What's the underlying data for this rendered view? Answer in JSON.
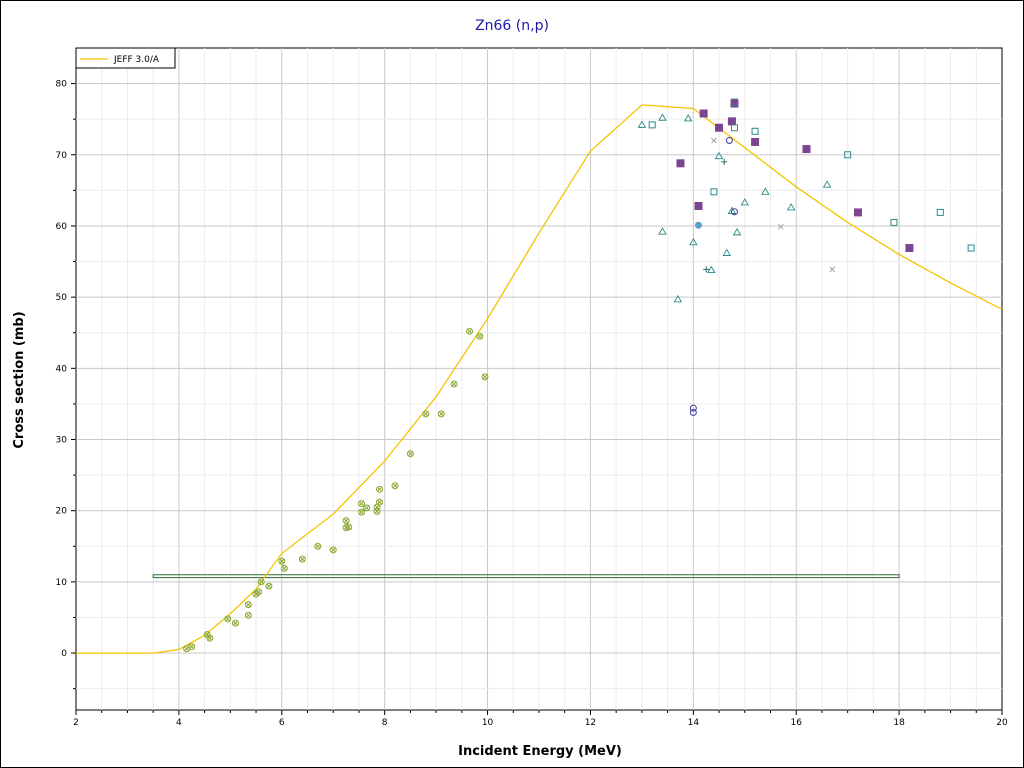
{
  "chart_data": {
    "type": "scatter",
    "title": "Zn66 (n,p)",
    "xlabel": "Incident Energy (MeV)",
    "ylabel": "Cross section (mb)",
    "xlim": [
      2,
      20
    ],
    "ylim": [
      -8,
      85
    ],
    "x_ticks": [
      2,
      4,
      6,
      8,
      10,
      12,
      14,
      16,
      18,
      20
    ],
    "y_ticks": [
      0,
      10,
      20,
      30,
      40,
      50,
      60,
      70,
      80
    ],
    "grid": true,
    "legend_placement": "top-left",
    "legend": [
      {
        "label": "JEFF 3.0/A",
        "color": "#f5c400"
      }
    ],
    "evaluated_curve": {
      "name": "JEFF 3.0/A",
      "color": "#f5c400",
      "x": [
        2,
        3.5,
        4,
        4.5,
        5,
        5.5,
        6,
        7,
        8,
        9,
        10,
        11,
        12,
        13,
        14,
        15,
        16,
        17,
        18,
        19,
        20
      ],
      "y": [
        0,
        0,
        0.5,
        2.5,
        5.5,
        9,
        14,
        19.5,
        27,
        36,
        47,
        59,
        70.5,
        77,
        76.5,
        71,
        65.5,
        60.5,
        56,
        52,
        48.3
      ]
    },
    "measurement_band": {
      "color": "#2e6b2e",
      "x": [
        3.5,
        18
      ],
      "y": [
        10.6,
        11.0
      ]
    },
    "series": [
      {
        "marker": "circle-x",
        "color": "#8aa830",
        "points": [
          [
            4.15,
            0.6
          ],
          [
            4.25,
            0.9
          ],
          [
            4.55,
            2.6
          ],
          [
            4.6,
            2.1
          ],
          [
            4.95,
            4.8
          ],
          [
            5.1,
            4.2
          ],
          [
            5.35,
            5.3
          ],
          [
            5.35,
            6.8
          ],
          [
            5.5,
            8.3
          ],
          [
            5.55,
            8.6
          ],
          [
            5.6,
            10
          ],
          [
            5.75,
            9.4
          ],
          [
            6,
            12.9
          ],
          [
            6.05,
            11.9
          ],
          [
            6.4,
            13.2
          ],
          [
            6.7,
            15
          ],
          [
            7,
            14.5
          ],
          [
            7.25,
            17.6
          ],
          [
            7.25,
            18.6
          ],
          [
            7.3,
            17.7
          ],
          [
            7.55,
            19.8
          ],
          [
            7.55,
            21
          ],
          [
            7.65,
            20.4
          ],
          [
            7.85,
            19.9
          ],
          [
            7.85,
            20.5
          ],
          [
            7.9,
            21.2
          ],
          [
            7.9,
            23
          ],
          [
            8.2,
            23.5
          ],
          [
            8.5,
            28
          ],
          [
            8.8,
            33.6
          ],
          [
            9.1,
            33.6
          ],
          [
            9.35,
            37.8
          ],
          [
            9.65,
            45.2
          ],
          [
            9.85,
            44.5
          ],
          [
            9.95,
            38.8
          ]
        ]
      },
      {
        "marker": "filled-square",
        "color": "#7b4590",
        "points": [
          [
            13.75,
            68.8
          ],
          [
            14.1,
            62.8
          ],
          [
            14.2,
            75.8
          ],
          [
            14.5,
            73.8
          ],
          [
            14.75,
            74.7
          ],
          [
            14.8,
            77.2
          ],
          [
            15.2,
            71.8
          ],
          [
            16.2,
            70.8
          ],
          [
            17.2,
            61.9
          ],
          [
            18.2,
            56.9
          ]
        ]
      },
      {
        "marker": "open-square",
        "color": "#2b8a8a",
        "points": [
          [
            13.2,
            74.2
          ],
          [
            14.4,
            64.8
          ],
          [
            14.8,
            73.8
          ],
          [
            14.8,
            77.4
          ],
          [
            15.2,
            73.3
          ],
          [
            17,
            70
          ],
          [
            17.9,
            60.5
          ],
          [
            18.8,
            61.9
          ],
          [
            19.4,
            56.9
          ]
        ]
      },
      {
        "marker": "open-triangle",
        "color": "#2b8a8a",
        "points": [
          [
            13,
            74.2
          ],
          [
            13.4,
            75.2
          ],
          [
            13.4,
            59.2
          ],
          [
            13.7,
            49.7
          ],
          [
            13.9,
            75.1
          ],
          [
            14,
            57.7
          ],
          [
            14.35,
            53.8
          ],
          [
            14.5,
            69.8
          ],
          [
            14.65,
            56.2
          ],
          [
            14.75,
            62.1
          ],
          [
            14.85,
            59.1
          ],
          [
            15,
            63.3
          ],
          [
            15.4,
            64.8
          ],
          [
            15.9,
            62.6
          ],
          [
            16.6,
            65.8
          ]
        ]
      },
      {
        "marker": "open-circle",
        "color": "#3a3a9a",
        "points": [
          [
            14,
            34.4
          ],
          [
            14,
            33.8
          ],
          [
            14.7,
            72
          ],
          [
            14.8,
            62
          ]
        ]
      },
      {
        "marker": "x-cross",
        "color": "#a0a0b0",
        "points": [
          [
            14.4,
            72
          ],
          [
            15.7,
            59.9
          ],
          [
            16.7,
            53.9
          ]
        ]
      },
      {
        "marker": "plus",
        "color": "#2b6b6b",
        "points": [
          [
            14.25,
            53.9
          ],
          [
            14.6,
            69
          ]
        ]
      },
      {
        "marker": "filled-circle",
        "color": "#5aa0c8",
        "points": [
          [
            14.1,
            60.1
          ]
        ]
      }
    ]
  }
}
